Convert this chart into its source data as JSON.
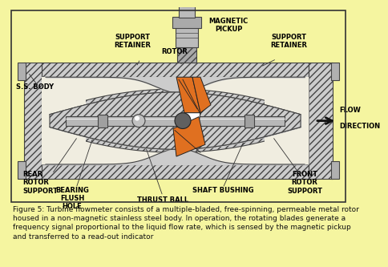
{
  "bg": "#f5f5a0",
  "hatch_fill": "#cccccc",
  "hatch_dark": "#444444",
  "inner_bg": "#f0ede0",
  "orange": "#e07020",
  "shaft_gray": "#b8b8b8",
  "pickup_gray": "#a8a8a8",
  "pickup_dark": "#888888",
  "white": "#ffffff",
  "label_fs": 6.0,
  "caption_fs": 6.5,
  "caption": "Figure 5: Turbine flowmeter consists of a multiple-bladed, free-spinning, permeable metal rotor\nhoused in a non-magnetic stainless steel body. In operation, the rotating blades generate a\nfrequency signal proportional to the liquid flow rate, which is sensed by the magnetic pickup\nand transferred to a read-out indicator"
}
